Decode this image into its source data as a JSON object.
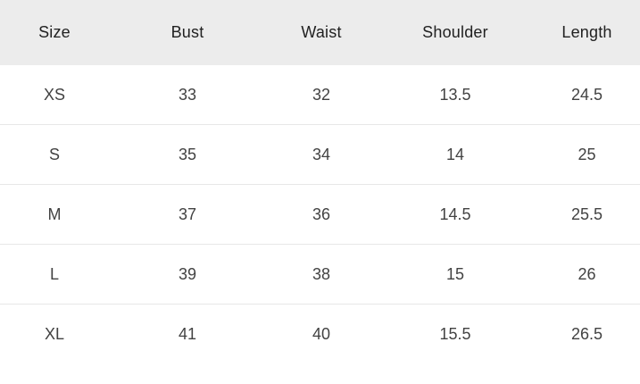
{
  "chart_data": {
    "type": "table",
    "columns": [
      "Size",
      "Bust",
      "Waist",
      "Shoulder",
      "Length"
    ],
    "rows": [
      [
        "XS",
        "33",
        "32",
        "13.5",
        "24.5"
      ],
      [
        "S",
        "35",
        "34",
        "14",
        "25"
      ],
      [
        "M",
        "37",
        "36",
        "14.5",
        "25.5"
      ],
      [
        "L",
        "39",
        "38",
        "15",
        "26"
      ],
      [
        "XL",
        "41",
        "40",
        "15.5",
        "26.5"
      ]
    ],
    "title": "",
    "layout": {
      "header_position": "top",
      "grid": "horizontal-dividers-only",
      "text_align": "center"
    }
  },
  "colors": {
    "header_bg": "#ececec",
    "header_text": "#212121",
    "body_text": "#424242",
    "divider": "#e7e7e7",
    "background": "#ffffff"
  }
}
